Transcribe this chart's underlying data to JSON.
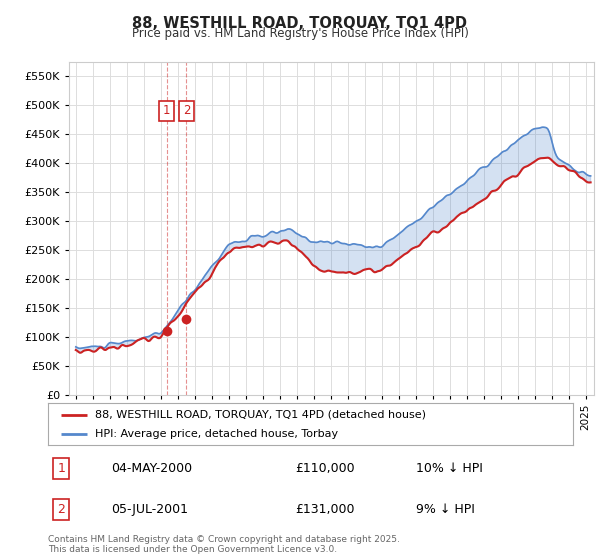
{
  "title": "88, WESTHILL ROAD, TORQUAY, TQ1 4PD",
  "subtitle": "Price paid vs. HM Land Registry's House Price Index (HPI)",
  "ylim": [
    0,
    575000
  ],
  "yticks": [
    0,
    50000,
    100000,
    150000,
    200000,
    250000,
    300000,
    350000,
    400000,
    450000,
    500000,
    550000
  ],
  "ytick_labels": [
    "£0",
    "£50K",
    "£100K",
    "£150K",
    "£200K",
    "£250K",
    "£300K",
    "£350K",
    "£400K",
    "£450K",
    "£500K",
    "£550K"
  ],
  "legend_line1": "88, WESTHILL ROAD, TORQUAY, TQ1 4PD (detached house)",
  "legend_line2": "HPI: Average price, detached house, Torbay",
  "footer": "Contains HM Land Registry data © Crown copyright and database right 2025.\nThis data is licensed under the Open Government Licence v3.0.",
  "sale1_label": "1",
  "sale1_date": "04-MAY-2000",
  "sale1_price": "£110,000",
  "sale1_hpi": "10% ↓ HPI",
  "sale2_label": "2",
  "sale2_date": "05-JUL-2001",
  "sale2_price": "£131,000",
  "sale2_hpi": "9% ↓ HPI",
  "red_color": "#cc2222",
  "blue_color": "#5588cc",
  "fill_color": "#ddeeff",
  "grid_color": "#dddddd",
  "bg_color": "#ffffff",
  "sale1_x": 2000.34,
  "sale1_y": 110000,
  "sale2_x": 2001.51,
  "sale2_y": 131000,
  "vline1_x": 2000.34,
  "vline2_x": 2001.51,
  "xlim_left": 1994.6,
  "xlim_right": 2025.5
}
